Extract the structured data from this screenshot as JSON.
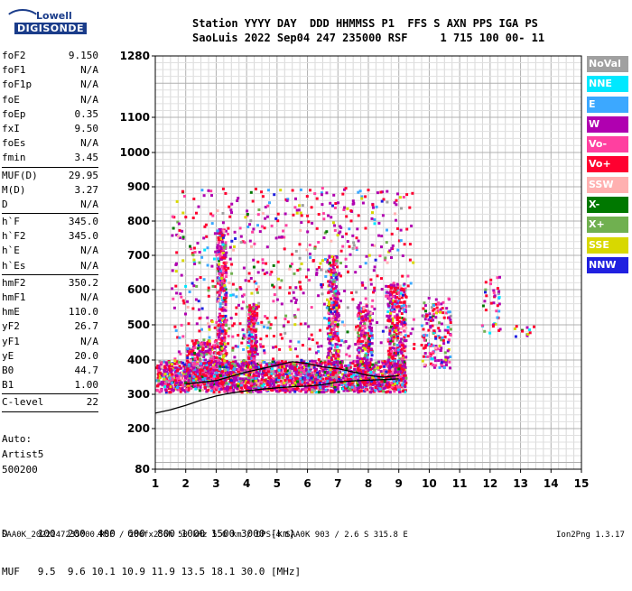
{
  "logo": {
    "line1": "Lowell",
    "line2": "DIGISONDE"
  },
  "header": {
    "line1": "Station YYYY DAY  DDD HHMMSS P1  FFS S AXN PPS IGA PS",
    "line2": "SaoLuis 2022 Sep04 247 235000 RSF     1 715 100 00- 11"
  },
  "params": {
    "group1": [
      {
        "name": "foF2",
        "value": "9.150"
      },
      {
        "name": "foF1",
        "value": "N/A"
      },
      {
        "name": "foF1p",
        "value": "N/A"
      },
      {
        "name": "foE",
        "value": "N/A"
      },
      {
        "name": "foEp",
        "value": "0.35"
      },
      {
        "name": "fxI",
        "value": "9.50"
      },
      {
        "name": "foEs",
        "value": "N/A"
      },
      {
        "name": "fmin",
        "value": "3.45"
      }
    ],
    "group2": [
      {
        "name": "MUF(D)",
        "value": "29.95"
      },
      {
        "name": "M(D)",
        "value": "3.27"
      },
      {
        "name": "D",
        "value": "N/A"
      }
    ],
    "group3": [
      {
        "name": "h`F",
        "value": "345.0"
      },
      {
        "name": "h`F2",
        "value": "345.0"
      },
      {
        "name": "h`E",
        "value": "N/A"
      },
      {
        "name": "h`Es",
        "value": "N/A"
      }
    ],
    "group4": [
      {
        "name": "hmF2",
        "value": "350.2"
      },
      {
        "name": "hmF1",
        "value": "N/A"
      },
      {
        "name": "hmE",
        "value": "110.0"
      },
      {
        "name": "yF2",
        "value": "26.7"
      },
      {
        "name": "yF1",
        "value": "N/A"
      },
      {
        "name": "yE",
        "value": "20.0"
      },
      {
        "name": "B0",
        "value": "44.7"
      },
      {
        "name": "B1",
        "value": "1.00"
      }
    ],
    "group5": [
      {
        "name": "C-level",
        "value": "22"
      }
    ],
    "auto": [
      "Auto:",
      "Artist5",
      "500200"
    ]
  },
  "mufd_table": {
    "row1": "D     100  200  400  600  800 1000 1500 3000 [km]",
    "row2": "MUF   9.5  9.6 10.1 10.9 11.9 13.5 18.1 30.0 [MHz]"
  },
  "footer": "SAA0K_2022247235000.RSF / 280fx256h 50 kHz 5.0 km / DPS-4 SAA0K 903 / 2.6 S 315.8 E",
  "version": "Ion2Png 1.3.17",
  "legend": [
    {
      "label": "NoVal",
      "color": "#a0a0a0"
    },
    {
      "label": "NNE",
      "color": "#00e8ff"
    },
    {
      "label": "E",
      "color": "#3ca8ff"
    },
    {
      "label": "W",
      "color": "#b000b0"
    },
    {
      "label": "Vo-",
      "color": "#ff40a0"
    },
    {
      "label": "Vo+",
      "color": "#ff0030"
    },
    {
      "label": "SSW",
      "color": "#ffb0b0"
    },
    {
      "label": "X-",
      "color": "#007800"
    },
    {
      "label": "X+",
      "color": "#70b050"
    },
    {
      "label": "SSE",
      "color": "#d8d800"
    },
    {
      "label": "NNW",
      "color": "#2020e0"
    }
  ],
  "chart_data": {
    "type": "scatter",
    "title": "",
    "xlabel": "",
    "ylabel": "",
    "xlim": [
      1,
      15
    ],
    "ylim": [
      80,
      1280
    ],
    "x_ticks": [
      1,
      2,
      3,
      4,
      5,
      6,
      7,
      8,
      9,
      10,
      11,
      12,
      13,
      14,
      15
    ],
    "y_ticks": [
      80,
      200,
      300,
      400,
      500,
      600,
      700,
      800,
      900,
      1000,
      1100,
      1280
    ],
    "grid": true,
    "series": [
      {
        "name": "profile_trace",
        "color": "#000000",
        "x": [
          1.0,
          1.5,
          2.0,
          2.5,
          3.0,
          3.5,
          4.0,
          4.5,
          5.0,
          5.5,
          6.0,
          6.5,
          7.0,
          7.5,
          8.0,
          8.5,
          9.0
        ],
        "y": [
          245,
          255,
          268,
          283,
          295,
          304,
          310,
          315,
          319,
          322,
          324,
          328,
          336,
          339,
          341,
          343,
          345
        ]
      },
      {
        "name": "virtual_trace",
        "color": "#000000",
        "x": [
          2.0,
          3.0,
          4.0,
          4.5,
          5.0,
          5.5,
          6.0,
          6.5,
          7.0,
          7.5,
          8.0,
          8.5,
          9.0
        ],
        "y": [
          330,
          340,
          365,
          375,
          385,
          395,
          390,
          380,
          375,
          365,
          355,
          350,
          355
        ]
      }
    ]
  }
}
